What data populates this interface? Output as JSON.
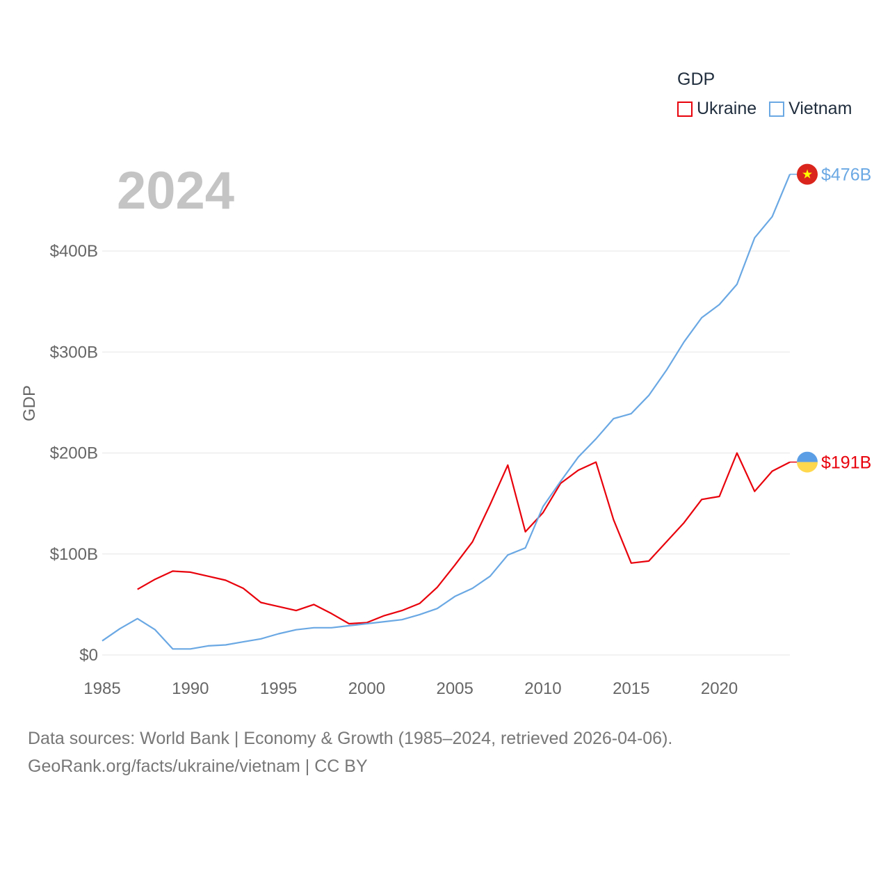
{
  "chart_data": {
    "type": "line",
    "title": "2024",
    "ylabel": "GDP",
    "xlim": [
      1985,
      2024
    ],
    "ylim": [
      0,
      476
    ],
    "x_ticks": [
      1985,
      1990,
      1995,
      2000,
      2005,
      2010,
      2015,
      2020
    ],
    "y_ticks": [
      0,
      100,
      200,
      300,
      400
    ],
    "y_tick_labels": [
      "$0",
      "$100B",
      "$200B",
      "$300B",
      "$400B"
    ],
    "legend_title": "GDP",
    "series": [
      {
        "name": "Ukraine",
        "color": "#e8000b",
        "end_label": "$191B",
        "x": [
          1987,
          1988,
          1989,
          1990,
          1991,
          1992,
          1993,
          1994,
          1995,
          1996,
          1997,
          1998,
          1999,
          2000,
          2001,
          2002,
          2003,
          2004,
          2005,
          2006,
          2007,
          2008,
          2009,
          2010,
          2011,
          2012,
          2013,
          2014,
          2015,
          2016,
          2017,
          2018,
          2019,
          2020,
          2021,
          2022,
          2023,
          2024
        ],
        "values": [
          65,
          75,
          83,
          82,
          78,
          74,
          66,
          52,
          48,
          44,
          50,
          41,
          31,
          32,
          39,
          44,
          51,
          67,
          89,
          112,
          149,
          188,
          122,
          141,
          170,
          183,
          191,
          134,
          91,
          93,
          112,
          131,
          154,
          157,
          200,
          162,
          182,
          191
        ]
      },
      {
        "name": "Vietnam",
        "color": "#6aa8e4",
        "end_label": "$476B",
        "x": [
          1985,
          1986,
          1987,
          1988,
          1989,
          1990,
          1991,
          1992,
          1993,
          1994,
          1995,
          1996,
          1997,
          1998,
          1999,
          2000,
          2001,
          2002,
          2003,
          2004,
          2005,
          2006,
          2007,
          2008,
          2009,
          2010,
          2011,
          2012,
          2013,
          2014,
          2015,
          2016,
          2017,
          2018,
          2019,
          2020,
          2021,
          2022,
          2023,
          2024
        ],
        "values": [
          14,
          26,
          36,
          25,
          6,
          6,
          9,
          10,
          13,
          16,
          21,
          25,
          27,
          27,
          29,
          31,
          33,
          35,
          40,
          46,
          58,
          66,
          78,
          99,
          106,
          147,
          172,
          196,
          214,
          234,
          239,
          257,
          282,
          310,
          334,
          347,
          367,
          413,
          434,
          476
        ]
      }
    ]
  },
  "footer": {
    "line1": "Data sources: World Bank | Economy & Growth (1985–2024, retrieved 2026-04-06).",
    "line2": "GeoRank.org/facts/ukraine/vietnam | CC BY"
  }
}
